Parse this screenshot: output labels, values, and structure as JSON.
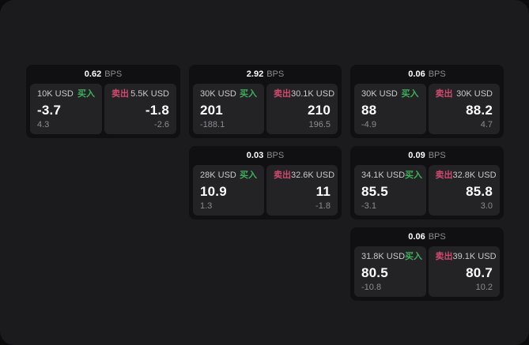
{
  "labels": {
    "bps_unit": "BPS",
    "buy": "买入",
    "sell": "卖出"
  },
  "colors": {
    "buy_green": "#3fae5c",
    "sell_red": "#cf4a6e",
    "panel_bg": "#1b1b1d",
    "card_bg": "#101012",
    "tile_bg": "#232326"
  },
  "cards": [
    {
      "bps": "0.62",
      "unit": "BPS",
      "row": 1,
      "col": 1,
      "buy": {
        "amount": "10K USD",
        "label": "买入",
        "value": "-3.7",
        "delta": "4.3"
      },
      "sell": {
        "amount": "5.5K USD",
        "label": "卖出",
        "value": "-1.8",
        "delta": "-2.6"
      }
    },
    {
      "bps": "2.92",
      "unit": "BPS",
      "row": 1,
      "col": 2,
      "buy": {
        "amount": "30K USD",
        "label": "买入",
        "value": "201",
        "delta": "-188.1"
      },
      "sell": {
        "amount": "30.1K USD",
        "label": "卖出",
        "value": "210",
        "delta": "196.5"
      }
    },
    {
      "bps": "0.06",
      "unit": "BPS",
      "row": 1,
      "col": 3,
      "buy": {
        "amount": "30K USD",
        "label": "买入",
        "value": "88",
        "delta": "-4.9"
      },
      "sell": {
        "amount": "30K USD",
        "label": "卖出",
        "value": "88.2",
        "delta": "4.7"
      }
    },
    {
      "bps": "0.03",
      "unit": "BPS",
      "row": 2,
      "col": 2,
      "buy": {
        "amount": "28K USD",
        "label": "买入",
        "value": "10.9",
        "delta": "1.3"
      },
      "sell": {
        "amount": "32.6K USD",
        "label": "卖出",
        "value": "11",
        "delta": "-1.8"
      }
    },
    {
      "bps": "0.09",
      "unit": "BPS",
      "row": 2,
      "col": 3,
      "buy": {
        "amount": "34.1K USD",
        "label": "买入",
        "value": "85.5",
        "delta": "-3.1"
      },
      "sell": {
        "amount": "32.8K USD",
        "label": "卖出",
        "value": "85.8",
        "delta": "3.0"
      }
    },
    {
      "bps": "0.06",
      "unit": "BPS",
      "row": 3,
      "col": 3,
      "buy": {
        "amount": "31.8K USD",
        "label": "买入",
        "value": "80.5",
        "delta": "-10.8"
      },
      "sell": {
        "amount": "39.1K USD",
        "label": "卖出",
        "value": "80.7",
        "delta": "10.2"
      }
    }
  ]
}
